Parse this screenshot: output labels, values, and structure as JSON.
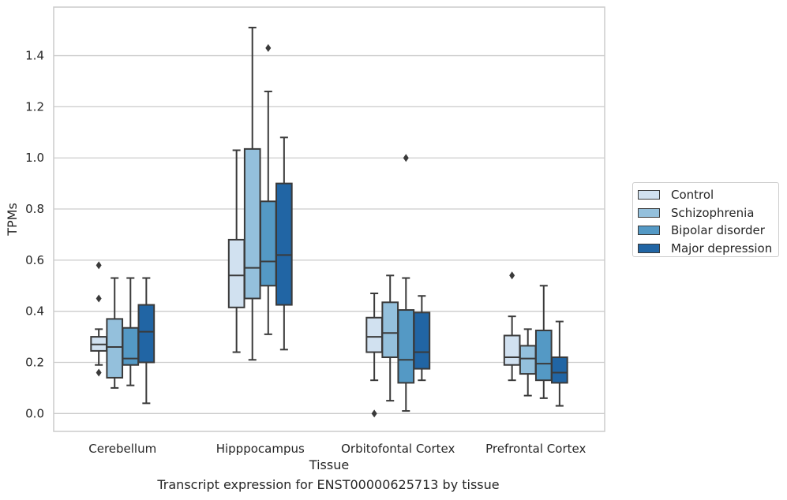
{
  "chart_data": {
    "type": "box",
    "xlabel": "Tissue",
    "ylabel": "TPMs",
    "ylim": [
      -0.07,
      1.59
    ],
    "yticks": [
      "0.0",
      "0.2",
      "0.4",
      "0.6",
      "0.8",
      "1.0",
      "1.2",
      "1.4"
    ],
    "grid": true,
    "legend_placement": "right",
    "categories": [
      "Cerebellum",
      "Hipppocampus",
      "Orbitofontal Cortex",
      "Prefrontal Cortex"
    ],
    "series": [
      {
        "name": "Control",
        "color": "#d1e1f0",
        "boxes": [
          {
            "whislo": 0.19,
            "q1": 0.245,
            "med": 0.27,
            "q3": 0.3,
            "whishi": 0.33,
            "fliers": [
              0.16,
              0.45,
              0.58
            ]
          },
          {
            "whislo": 0.24,
            "q1": 0.415,
            "med": 0.54,
            "q3": 0.68,
            "whishi": 1.03,
            "fliers": []
          },
          {
            "whislo": 0.13,
            "q1": 0.24,
            "med": 0.3,
            "q3": 0.375,
            "whishi": 0.47,
            "fliers": [
              0.0
            ]
          },
          {
            "whislo": 0.13,
            "q1": 0.19,
            "med": 0.22,
            "q3": 0.305,
            "whishi": 0.38,
            "fliers": [
              0.54
            ]
          }
        ]
      },
      {
        "name": "Schizophrenia",
        "color": "#94c0dc",
        "boxes": [
          {
            "whislo": 0.1,
            "q1": 0.14,
            "med": 0.26,
            "q3": 0.37,
            "whishi": 0.53,
            "fliers": []
          },
          {
            "whislo": 0.21,
            "q1": 0.45,
            "med": 0.57,
            "q3": 1.035,
            "whishi": 1.51,
            "fliers": []
          },
          {
            "whislo": 0.05,
            "q1": 0.22,
            "med": 0.315,
            "q3": 0.435,
            "whishi": 0.54,
            "fliers": []
          },
          {
            "whislo": 0.07,
            "q1": 0.155,
            "med": 0.215,
            "q3": 0.265,
            "whishi": 0.33,
            "fliers": []
          }
        ]
      },
      {
        "name": "Bipolar disorder",
        "color": "#5499c5",
        "boxes": [
          {
            "whislo": 0.11,
            "q1": 0.19,
            "med": 0.215,
            "q3": 0.335,
            "whishi": 0.53,
            "fliers": []
          },
          {
            "whislo": 0.31,
            "q1": 0.5,
            "med": 0.595,
            "q3": 0.83,
            "whishi": 1.26,
            "fliers": [
              1.43
            ]
          },
          {
            "whislo": 0.01,
            "q1": 0.12,
            "med": 0.21,
            "q3": 0.405,
            "whishi": 0.53,
            "fliers": [
              1.0
            ]
          },
          {
            "whislo": 0.06,
            "q1": 0.13,
            "med": 0.195,
            "q3": 0.325,
            "whishi": 0.5,
            "fliers": []
          }
        ]
      },
      {
        "name": "Major depression",
        "color": "#2165a4",
        "boxes": [
          {
            "whislo": 0.04,
            "q1": 0.2,
            "med": 0.32,
            "q3": 0.425,
            "whishi": 0.53,
            "fliers": []
          },
          {
            "whislo": 0.25,
            "q1": 0.425,
            "med": 0.62,
            "q3": 0.9,
            "whishi": 1.08,
            "fliers": []
          },
          {
            "whislo": 0.13,
            "q1": 0.175,
            "med": 0.24,
            "q3": 0.395,
            "whishi": 0.46,
            "fliers": []
          },
          {
            "whislo": 0.03,
            "q1": 0.12,
            "med": 0.16,
            "q3": 0.22,
            "whishi": 0.36,
            "fliers": []
          }
        ]
      }
    ]
  },
  "caption": "Transcript expression for ENST00000625713 by tissue"
}
